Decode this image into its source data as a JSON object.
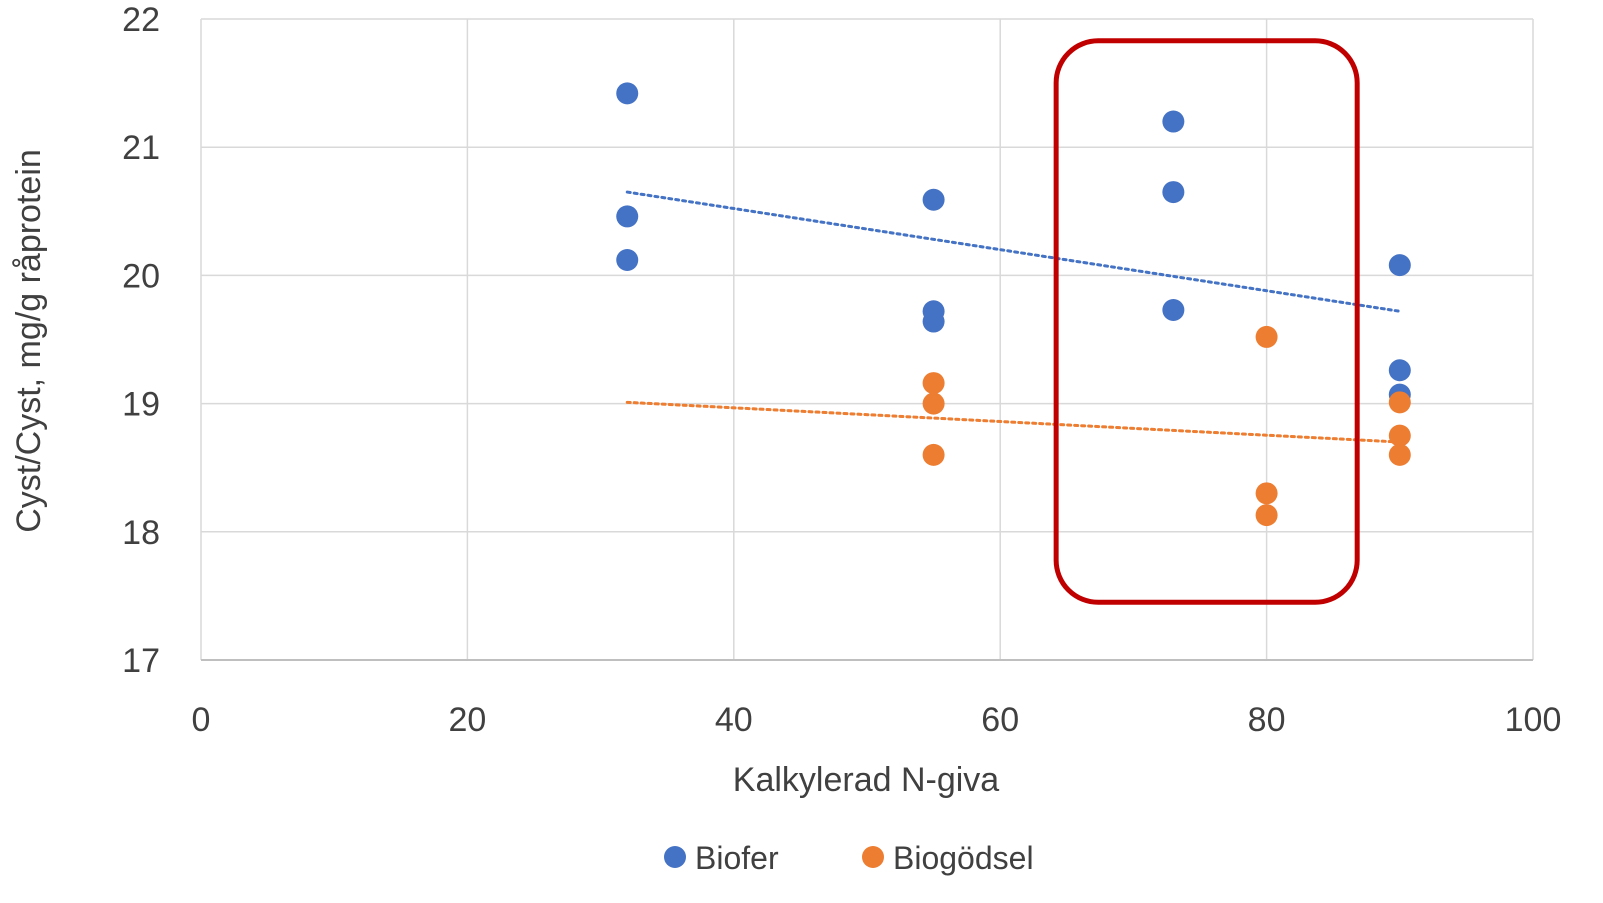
{
  "chart_data": {
    "type": "scatter",
    "xlabel": "Kalkylerad N-giva",
    "ylabel": "Cyst/Cyst, mg/g råprotein",
    "xlim": [
      0,
      100
    ],
    "ylim": [
      17,
      22
    ],
    "x_ticks": [
      "0",
      "20",
      "40",
      "60",
      "80",
      "100"
    ],
    "y_ticks": [
      "17",
      "18",
      "19",
      "20",
      "21",
      "22"
    ],
    "grid": true,
    "legend_position": "bottom",
    "series": [
      {
        "name": "Biofer",
        "color": "#4472C4",
        "points": [
          {
            "x": 32,
            "y": 21.42
          },
          {
            "x": 32,
            "y": 20.46
          },
          {
            "x": 32,
            "y": 20.12
          },
          {
            "x": 55,
            "y": 20.59
          },
          {
            "x": 55,
            "y": 19.72
          },
          {
            "x": 55,
            "y": 19.64
          },
          {
            "x": 73,
            "y": 21.2
          },
          {
            "x": 73,
            "y": 20.65
          },
          {
            "x": 73,
            "y": 19.73
          },
          {
            "x": 90,
            "y": 20.08
          },
          {
            "x": 90,
            "y": 19.26
          },
          {
            "x": 90,
            "y": 19.07
          }
        ],
        "trendline": {
          "x": [
            32,
            90
          ],
          "y": [
            20.65,
            19.72
          ]
        }
      },
      {
        "name": "Biogödsel",
        "color": "#ED7D31",
        "points": [
          {
            "x": 55,
            "y": 19.16
          },
          {
            "x": 55,
            "y": 19.0
          },
          {
            "x": 55,
            "y": 18.6
          },
          {
            "x": 80,
            "y": 19.52
          },
          {
            "x": 80,
            "y": 18.3
          },
          {
            "x": 80,
            "y": 18.13
          },
          {
            "x": 90,
            "y": 19.01
          },
          {
            "x": 90,
            "y": 18.75
          },
          {
            "x": 90,
            "y": 18.6
          }
        ],
        "trendline": {
          "x": [
            32,
            90
          ],
          "y": [
            19.01,
            18.7
          ]
        }
      }
    ],
    "highlight": {
      "shape": "rounded-rectangle",
      "color": "#C00000",
      "x_range": [
        64.2,
        86.8
      ],
      "y_range": [
        17.45,
        21.83
      ]
    }
  }
}
